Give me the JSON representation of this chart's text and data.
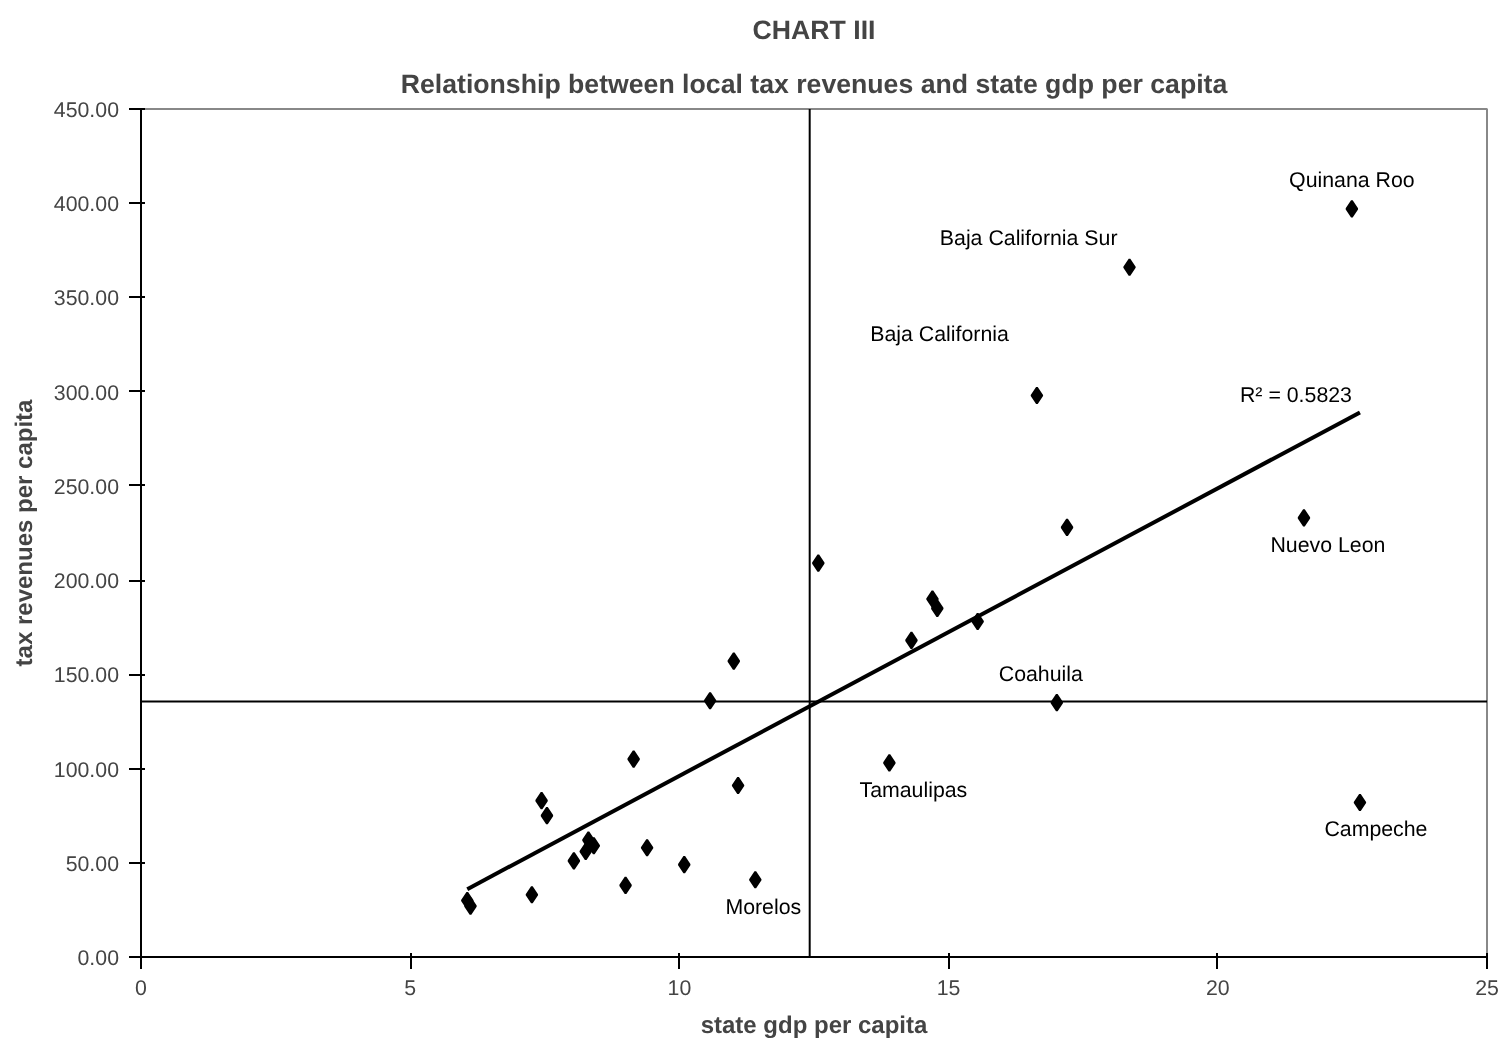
{
  "chart_data": {
    "type": "scatter",
    "title": "CHART III",
    "subtitle": "Relationship between local tax revenues and state gdp per capita",
    "xlabel": "state gdp per capita",
    "ylabel": "tax revenues per capita",
    "xlim": [
      0,
      25
    ],
    "xticks": [
      0,
      5,
      10,
      15,
      20,
      25
    ],
    "ylim": [
      0,
      450
    ],
    "yticks": [
      {
        "value": 0,
        "label": "0.00"
      },
      {
        "value": 50,
        "label": "50.00"
      },
      {
        "value": 100,
        "label": "100.00"
      },
      {
        "value": 150,
        "label": "150.00"
      },
      {
        "value": 200,
        "label": "200.00"
      },
      {
        "value": 250,
        "label": "250.00"
      },
      {
        "value": 300,
        "label": "300.00"
      },
      {
        "value": 350,
        "label": "350.00"
      },
      {
        "value": 400,
        "label": "400.00"
      },
      {
        "value": 450,
        "label": "450.00"
      }
    ],
    "grid": false,
    "marker": "diamond",
    "series": [
      {
        "color": "#000000",
        "x": [
          6.06,
          6.12,
          7.26,
          7.44,
          7.54,
          8.04,
          8.26,
          8.31,
          8.41,
          9.0,
          9.15,
          9.4,
          10.09,
          10.57,
          11.01,
          11.09,
          11.41,
          12.58,
          14.31,
          14.7,
          14.79,
          15.54,
          13.9,
          17.01,
          17.2,
          16.64,
          18.36,
          22.49,
          21.6,
          22.64
        ],
        "values": [
          30,
          27,
          33,
          83,
          75,
          51,
          56,
          62,
          59,
          38,
          105,
          58,
          49,
          136,
          157,
          91,
          41,
          209,
          168,
          190,
          185,
          178,
          103,
          135,
          228,
          298,
          366,
          397,
          233,
          82
        ]
      },
      {
        "type": "line",
        "marker": "none",
        "color": "#000000",
        "x": [
          6.06,
          22.64
        ],
        "values": [
          36,
          289
        ]
      }
    ],
    "ref_lines": [
      {
        "axis": "x",
        "value": 12.42,
        "color": "#000000"
      },
      {
        "axis": "y",
        "value": 135.6,
        "color": "#000000"
      }
    ],
    "annotations": [
      {
        "text": "Baja California Sur",
        "x": 18.36,
        "y": 366
      },
      {
        "text": "Quinana Roo",
        "x": 22.49,
        "y": 397
      },
      {
        "text": "Baja California",
        "x": 16.64,
        "y": 298
      },
      {
        "text": "R² = 0.5823",
        "x": 22.64,
        "y": 289
      },
      {
        "text": "Nuevo Leon",
        "x": 21.6,
        "y": 233
      },
      {
        "text": "Coahuila",
        "x": 17.01,
        "y": 135
      },
      {
        "text": "Tamaulipas",
        "x": 13.9,
        "y": 103
      },
      {
        "text": "Campeche",
        "x": 22.64,
        "y": 82
      },
      {
        "text": "Morelos",
        "x": 11.41,
        "y": 41
      }
    ]
  }
}
